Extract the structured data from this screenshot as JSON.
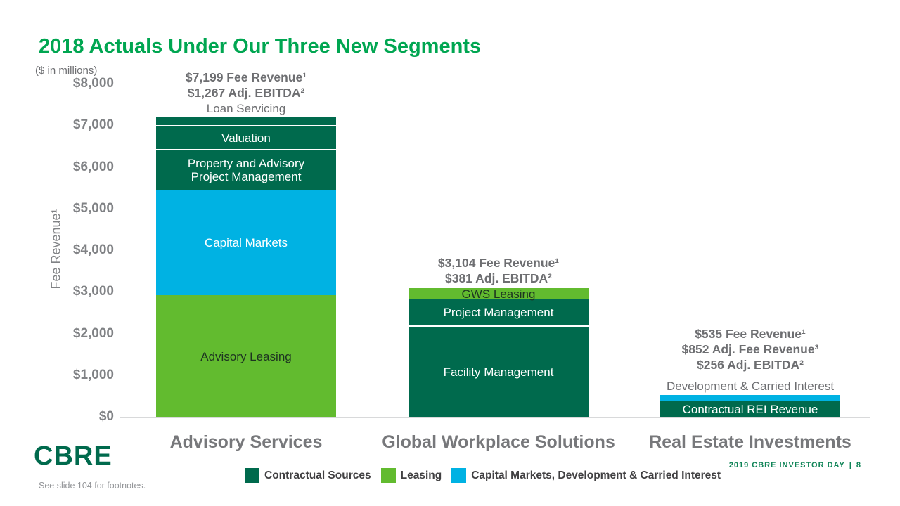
{
  "slide": {
    "title": "2018 Actuals Under Our Three New Segments",
    "units_note": "($ in millions)",
    "footnote": "See slide 104 for footnotes.",
    "logo_text": "CBRE",
    "footer_label": "2019 CBRE INVESTOR DAY",
    "footer_separator": "|",
    "footer_page": "8"
  },
  "colors": {
    "title_green": "#00A651",
    "contractual": "#006A4D",
    "leasing": "#62BB2F",
    "capital": "#00B2E3",
    "axis_gray": "#808285",
    "annotation_gray": "#6D6E71",
    "category_gray": "#77787B",
    "legend_text": "#414042",
    "footer_green": "#0F8457",
    "logo_green": "#006A4D",
    "axis_line": "#D8D9DA"
  },
  "chart_data": {
    "type": "bar",
    "stacked": true,
    "title": "2018 Actuals Under Our Three New Segments",
    "units": "$ in millions",
    "ylabel": "Fee Revenue¹",
    "xlabel": "",
    "ylim": [
      0,
      8000
    ],
    "grid": false,
    "legend_position": "bottom",
    "y_ticks": [
      {
        "label": "$0",
        "value": 0
      },
      {
        "label": "$1,000",
        "value": 1000
      },
      {
        "label": "$2,000",
        "value": 2000
      },
      {
        "label": "$3,000",
        "value": 3000
      },
      {
        "label": "$4,000",
        "value": 4000
      },
      {
        "label": "$5,000",
        "value": 5000
      },
      {
        "label": "$6,000",
        "value": 6000
      },
      {
        "label": "$7,000",
        "value": 7000
      },
      {
        "label": "$8,000",
        "value": 8000
      }
    ],
    "legend": [
      {
        "label": "Contractual Sources",
        "color": "contractual"
      },
      {
        "label": "Leasing",
        "color": "leasing"
      },
      {
        "label": "Capital Markets, Development & Carried Interest",
        "color": "capital"
      }
    ],
    "bars": [
      {
        "category": "Advisory Services",
        "annotation_lines": [
          "$7,199 Fee Revenue¹",
          "$1,267 Adj. EBITDA²"
        ],
        "printed_metrics": {
          "fee_revenue": 7199,
          "adj_ebitda": 1267
        },
        "segments": [
          {
            "name": "Advisory Leasing",
            "value": 2929,
            "estimated": true,
            "color": "leasing",
            "label_lines": [
              "Advisory Leasing"
            ],
            "label_style": "inside-dark"
          },
          {
            "name": "Capital Markets",
            "value": 2530,
            "estimated": true,
            "color": "capital",
            "label_lines": [
              "Capital Markets"
            ],
            "label_style": "inside-white"
          },
          {
            "name": "Property and Advisory Project Management",
            "value": 960,
            "estimated": true,
            "color": "contractual",
            "label_lines": [
              "Property and Advisory",
              "Project Management"
            ],
            "label_style": "inside-white"
          },
          {
            "name": "Valuation",
            "value": 560,
            "estimated": true,
            "color": "contractual",
            "divider": true,
            "label_lines": [
              "Valuation"
            ],
            "label_style": "inside-white"
          },
          {
            "name": "Loan Servicing",
            "value": 220,
            "estimated": true,
            "color": "contractual",
            "divider": true,
            "label_lines": [
              "Loan Servicing"
            ],
            "label_style": "above-gray"
          }
        ]
      },
      {
        "category": "Global Workplace Solutions",
        "annotation_lines": [
          "$3,104 Fee Revenue¹",
          "$381 Adj. EBITDA²"
        ],
        "printed_metrics": {
          "fee_revenue": 3104,
          "adj_ebitda": 381
        },
        "segments": [
          {
            "name": "Facility Management",
            "value": 2185,
            "estimated": true,
            "color": "contractual",
            "label_lines": [
              "Facility Management"
            ],
            "label_style": "inside-white"
          },
          {
            "name": "Project Management",
            "value": 645,
            "estimated": true,
            "color": "contractual",
            "divider": true,
            "label_lines": [
              "Project Management"
            ],
            "label_style": "inside-white"
          },
          {
            "name": "GWS Leasing",
            "value": 274,
            "estimated": true,
            "color": "leasing",
            "label_lines": [
              "GWS Leasing"
            ],
            "label_style": "inside-dark"
          }
        ]
      },
      {
        "category": "Real Estate Investments",
        "annotation_lines": [
          "$535 Fee Revenue¹",
          "$852 Adj. Fee Revenue³",
          "$256 Adj. EBITDA²"
        ],
        "printed_metrics": {
          "fee_revenue": 535,
          "adj_fee_revenue": 852,
          "adj_ebitda": 256
        },
        "segments": [
          {
            "name": "Contractual REI Revenue",
            "value": 400,
            "estimated": true,
            "color": "contractual",
            "label_lines": [
              "Contractual REI Revenue"
            ],
            "label_style": "inside-white"
          },
          {
            "name": "Development & Carried Interest",
            "value": 135,
            "estimated": true,
            "color": "capital",
            "label_lines": [
              "Development & Carried Interest"
            ],
            "label_style": "above-gray"
          }
        ]
      }
    ]
  }
}
